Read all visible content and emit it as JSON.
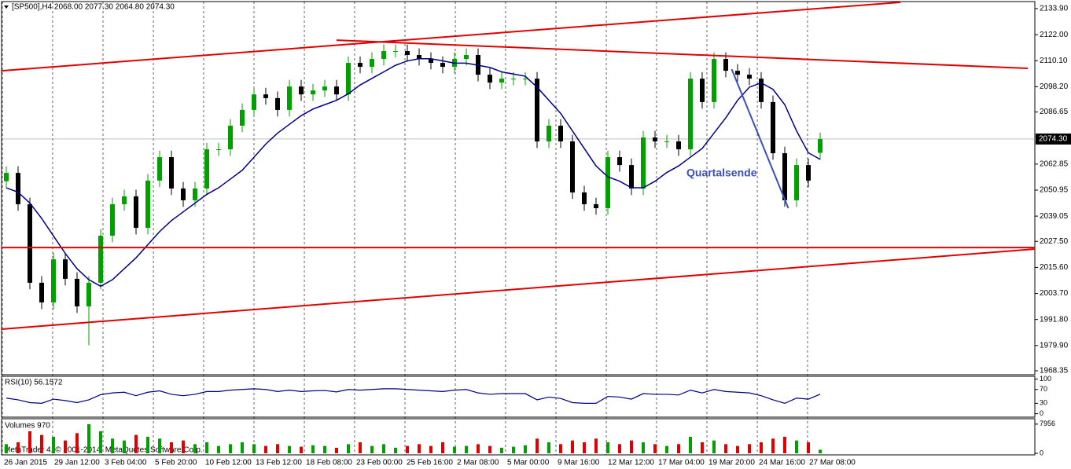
{
  "header": "[SP500],H4  2068.00 2077.30 2064.80 2074.30",
  "watermark": "MetaTrader 4, © 2001-2014, MetaQuotes Software Corp.",
  "chart_data": [
    {
      "type": "candlestick",
      "open": [
        2055.0,
        2058.8,
        2044.5,
        2008.6,
        1999.6,
        2019.3,
        2010.4,
        1997.8,
        2008.6,
        2030.1,
        2044.5,
        2048.1,
        2033.7,
        2055.3,
        2066.0,
        2051.7,
        2046.3,
        2051.7,
        2069.6,
        2069.6,
        2080.4,
        2087.6,
        2094.7,
        2093.0,
        2087.6,
        2098.3,
        2094.7,
        2096.5,
        2098.3,
        2094.7,
        2109.1,
        2107.3,
        2110.9,
        2114.5,
        2114.5,
        2112.7,
        2110.9,
        2109.1,
        2107.3,
        2110.9,
        2112.7,
        2103.7,
        2100.1,
        2101.9,
        2101.9,
        2101.9,
        2073.2,
        2080.4,
        2073.2,
        2049.9,
        2044.5,
        2042.7,
        2066.0,
        2062.4,
        2051.7,
        2075.0,
        2073.2,
        2073.2,
        2069.6,
        2101.9,
        2091.2,
        2110.9,
        2105.5,
        2103.7,
        2101.9,
        2091.2,
        2067.8,
        2046.3,
        2062.4,
        2068.0
      ],
      "high": [
        2061.8,
        2061.8,
        2047.5,
        2011.6,
        2022.3,
        2022.3,
        2013.4,
        2011.6,
        2033.1,
        2047.5,
        2051.1,
        2051.1,
        2058.3,
        2069.0,
        2069.0,
        2054.7,
        2054.7,
        2072.6,
        2072.6,
        2083.4,
        2090.6,
        2097.7,
        2097.7,
        2096.0,
        2101.3,
        2101.3,
        2099.5,
        2101.3,
        2101.3,
        2112.1,
        2112.1,
        2113.9,
        2117.5,
        2117.5,
        2117.5,
        2115.7,
        2113.9,
        2112.1,
        2113.9,
        2115.7,
        2115.7,
        2106.7,
        2104.9,
        2104.9,
        2104.9,
        2104.9,
        2083.4,
        2083.4,
        2076.2,
        2052.9,
        2047.5,
        2069.0,
        2069.0,
        2065.4,
        2078.0,
        2078.0,
        2076.2,
        2076.2,
        2104.9,
        2104.9,
        2113.9,
        2113.9,
        2108.5,
        2106.7,
        2104.9,
        2094.2,
        2070.8,
        2065.4,
        2065.4,
        2077.3
      ],
      "low": [
        2052.0,
        2041.5,
        2005.6,
        1996.6,
        1996.6,
        2007.4,
        1994.8,
        1980.0,
        2005.6,
        2027.1,
        2041.5,
        2030.7,
        2030.7,
        2052.3,
        2048.7,
        2043.3,
        2043.3,
        2048.7,
        2066.6,
        2066.6,
        2077.4,
        2084.6,
        2090.0,
        2084.6,
        2084.6,
        2091.7,
        2091.7,
        2093.5,
        2091.7,
        2091.7,
        2104.3,
        2104.3,
        2107.9,
        2111.5,
        2109.7,
        2107.9,
        2106.1,
        2104.3,
        2104.3,
        2107.9,
        2100.7,
        2097.1,
        2097.1,
        2098.9,
        2098.9,
        2070.2,
        2070.2,
        2070.2,
        2046.9,
        2041.5,
        2039.7,
        2039.7,
        2059.4,
        2048.7,
        2048.7,
        2070.2,
        2070.2,
        2066.6,
        2066.6,
        2088.2,
        2088.2,
        2102.5,
        2100.7,
        2098.9,
        2088.2,
        2064.8,
        2043.3,
        2043.3,
        2052.3,
        2064.8
      ],
      "close": [
        2058.8,
        2044.5,
        2008.6,
        1999.6,
        2019.3,
        2010.4,
        1997.8,
        2008.6,
        2030.1,
        2044.5,
        2048.1,
        2033.7,
        2055.3,
        2066.0,
        2051.7,
        2046.3,
        2051.7,
        2069.6,
        2069.6,
        2080.4,
        2087.6,
        2094.7,
        2093.0,
        2087.6,
        2098.3,
        2094.7,
        2096.5,
        2098.3,
        2094.7,
        2109.1,
        2107.3,
        2110.9,
        2114.5,
        2114.5,
        2112.7,
        2110.9,
        2109.1,
        2107.3,
        2110.9,
        2112.7,
        2103.7,
        2100.1,
        2101.9,
        2101.9,
        2101.9,
        2073.2,
        2080.4,
        2073.2,
        2049.9,
        2044.5,
        2042.7,
        2066.0,
        2062.4,
        2051.7,
        2075.0,
        2073.2,
        2073.2,
        2069.6,
        2101.9,
        2091.2,
        2110.9,
        2105.5,
        2103.7,
        2101.9,
        2091.2,
        2067.8,
        2046.3,
        2062.4,
        2055.3,
        2074.3
      ],
      "up_color": "#00a000",
      "down_color": "#000000",
      "moving_average": {
        "color": "#000080",
        "values": [
          2052,
          2050,
          2045,
          2038,
          2030,
          2022,
          2015,
          2010,
          2007,
          2010,
          2015,
          2020,
          2026,
          2032,
          2037,
          2041,
          2045,
          2049,
          2052,
          2056,
          2060,
          2066,
          2072,
          2077,
          2081,
          2085,
          2088,
          2090,
          2092,
          2095,
          2099,
          2102,
          2105,
          2108,
          2110,
          2111,
          2111,
          2110,
          2109,
          2109,
          2108,
          2107,
          2105,
          2104,
          2103,
          2098,
          2092,
          2086,
          2078,
          2070,
          2062,
          2057,
          2055,
          2052,
          2052,
          2055,
          2059,
          2062,
          2066,
          2070,
          2077,
          2084,
          2092,
          2098,
          2100,
          2097,
          2090,
          2078,
          2068,
          2065
        ]
      },
      "trendlines": [
        {
          "color": "#e00000",
          "x": [
            -0.4,
            75.8
          ],
          "values": [
            2105.5,
            2136.8
          ]
        },
        {
          "color": "#e00000",
          "x": [
            28,
            86.6
          ],
          "values": [
            2119.5,
            2106.6
          ]
        },
        {
          "color": "#e00000",
          "x": [
            -0.4,
            87.2
          ],
          "values": [
            2024.7,
            2024.7
          ]
        },
        {
          "color": "#e00000",
          "x": [
            -0.4,
            87.2
          ],
          "values": [
            1987.4,
            2024.0
          ]
        },
        {
          "color": "#3a4fc0",
          "x": [
            61.5,
            66.3
          ],
          "values": [
            2106.2,
            2042.7
          ]
        }
      ],
      "annotation": {
        "text": "Quartalsende",
        "color": "#3a4fc0"
      },
      "xlim": [
        -0.4,
        87.2
      ],
      "ylim": [
        1966.55,
        2137.13
      ],
      "yticks": [
        {
          "value": 2133.9,
          "label": "2133.90"
        },
        {
          "value": 2122,
          "label": "2122.00"
        },
        {
          "value": 2110.1,
          "label": "2110.10"
        },
        {
          "value": 2098.2,
          "label": "2098.20"
        },
        {
          "value": 2086.65,
          "label": "2086.65"
        },
        {
          "value": 2062.85,
          "label": "2062.85"
        },
        {
          "value": 2050.95,
          "label": "2050.95"
        },
        {
          "value": 2039.05,
          "label": "2039.05"
        },
        {
          "value": 2027.5,
          "label": "2027.50"
        },
        {
          "value": 2015.6,
          "label": "2015.60"
        },
        {
          "value": 2003.7,
          "label": "2003.70"
        },
        {
          "value": 1991.8,
          "label": "1991.80"
        },
        {
          "value": 1979.9,
          "label": "1979.90"
        },
        {
          "value": 1968.35,
          "label": "1968.35"
        }
      ],
      "last_price": {
        "value": 2074.3,
        "label": "2074.30"
      },
      "xticks": [
        {
          "value": -0.33,
          "label": "26 Jan 2015"
        },
        {
          "value": 3.93,
          "label": "29 Jan 12:00"
        },
        {
          "value": 8.2,
          "label": "3 Feb 04:00"
        },
        {
          "value": 12.47,
          "label": "5 Feb 20:00"
        },
        {
          "value": 16.73,
          "label": "10 Feb 12:00"
        },
        {
          "value": 21,
          "label": "13 Feb 12:00"
        },
        {
          "value": 25.27,
          "label": "18 Feb 08:00"
        },
        {
          "value": 29.53,
          "label": "23 Feb 00:00"
        },
        {
          "value": 33.8,
          "label": "25 Feb 16:00"
        },
        {
          "value": 38.07,
          "label": "2 Mar 08:00"
        },
        {
          "value": 42.33,
          "label": "5 Mar 00:00"
        },
        {
          "value": 46.6,
          "label": "9 Mar 16:00"
        },
        {
          "value": 50.87,
          "label": "12 Mar 12:00"
        },
        {
          "value": 55.13,
          "label": "17 Mar 04:00"
        },
        {
          "value": 59.4,
          "label": "19 Mar 20:00"
        },
        {
          "value": 63.67,
          "label": "24 Mar 16:00"
        },
        {
          "value": 67.93,
          "label": "27 Mar 08:00"
        }
      ],
      "grid": true
    },
    {
      "type": "line",
      "title": "RSI(10) 56.1572",
      "color": "#000080",
      "values": [
        45,
        40,
        32,
        30,
        42,
        38,
        32,
        40,
        55,
        60,
        62,
        52,
        62,
        66,
        56,
        52,
        56,
        64,
        64,
        68,
        70,
        72,
        70,
        64,
        68,
        64,
        66,
        67,
        63,
        70,
        68,
        70,
        72,
        72,
        70,
        68,
        66,
        64,
        68,
        70,
        60,
        56,
        58,
        58,
        58,
        40,
        48,
        44,
        32,
        30,
        30,
        50,
        48,
        42,
        58,
        56,
        56,
        54,
        68,
        60,
        70,
        64,
        62,
        60,
        52,
        40,
        30,
        45,
        42,
        56.1572
      ],
      "ylim": [
        -10,
        108
      ],
      "yticks": [
        0,
        30,
        70,
        100
      ]
    },
    {
      "type": "bar",
      "title": "Volumes 970",
      "up_color": "#00a000",
      "down_color": "#e00000",
      "values": [
        2500,
        3000,
        6000,
        5000,
        4500,
        3500,
        5500,
        7956,
        6000,
        4000,
        3500,
        5000,
        4500,
        4000,
        3000,
        3500,
        2500,
        3000,
        2000,
        2500,
        3000,
        2500,
        2000,
        2500,
        2000,
        1800,
        2200,
        2000,
        1500,
        2500,
        3000,
        2000,
        2500,
        1500,
        2000,
        2500,
        2000,
        3000,
        1800,
        2000,
        2500,
        2000,
        1500,
        1800,
        2200,
        4000,
        3000,
        2500,
        3500,
        3000,
        4000,
        3000,
        2500,
        3500,
        3000,
        2500,
        2000,
        2500,
        4500,
        3000,
        3500,
        2500,
        2000,
        2500,
        3000,
        4000,
        4500,
        3500,
        3000,
        970
      ],
      "ylim": [
        0,
        9000
      ],
      "yticks": [
        0,
        7956
      ]
    }
  ]
}
